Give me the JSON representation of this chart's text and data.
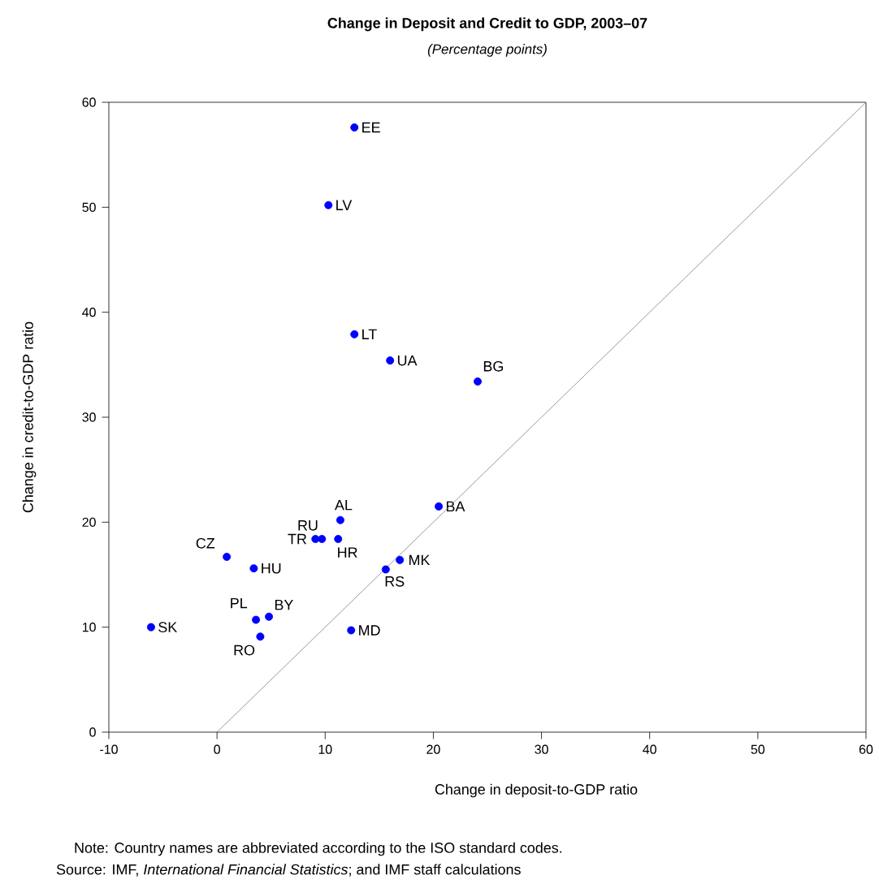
{
  "chart_data": {
    "type": "scatter",
    "title": "Change in Deposit and Credit to GDP, 2003–07",
    "subtitle": "(Percentage points)",
    "xlabel": "Change in deposit-to-GDP ratio",
    "ylabel": "Change in credit-to-GDP ratio",
    "xlim": [
      -10,
      60
    ],
    "ylim": [
      0,
      60
    ],
    "xticks": [
      -10,
      0,
      10,
      20,
      30,
      40,
      50,
      60
    ],
    "yticks": [
      0,
      10,
      20,
      30,
      40,
      50,
      60
    ],
    "grid": false,
    "legend": false,
    "marker": "circle",
    "series": [
      {
        "name": "EE",
        "color": "#0000ff",
        "x": [
          12.7
        ],
        "values": [
          57.6
        ]
      },
      {
        "name": "LV",
        "color": "#0000ff",
        "x": [
          10.3
        ],
        "values": [
          50.2
        ]
      },
      {
        "name": "LT",
        "color": "#0000ff",
        "x": [
          12.7
        ],
        "values": [
          37.9
        ]
      },
      {
        "name": "UA",
        "color": "#0000ff",
        "x": [
          16.0
        ],
        "values": [
          35.4
        ]
      },
      {
        "name": "BG",
        "color": "#0000ff",
        "x": [
          24.1
        ],
        "values": [
          33.4
        ]
      },
      {
        "name": "AL",
        "color": "#0000ff",
        "x": [
          11.4
        ],
        "values": [
          20.2
        ]
      },
      {
        "name": "HR",
        "color": "#0000ff",
        "x": [
          11.2
        ],
        "values": [
          18.4
        ]
      },
      {
        "name": "RU",
        "color": "#0000ff",
        "x": [
          9.7
        ],
        "values": [
          18.4
        ]
      },
      {
        "name": "TR",
        "color": "#0000ff",
        "x": [
          9.1
        ],
        "values": [
          18.4
        ]
      },
      {
        "name": "CZ",
        "color": "#0000ff",
        "x": [
          0.9
        ],
        "values": [
          16.7
        ]
      },
      {
        "name": "HU",
        "color": "#0000ff",
        "x": [
          3.4
        ],
        "values": [
          15.6
        ]
      },
      {
        "name": "BA",
        "color": "#0000ff",
        "x": [
          20.5
        ],
        "values": [
          21.5
        ]
      },
      {
        "name": "MK",
        "color": "#0000ff",
        "x": [
          16.9
        ],
        "values": [
          16.4
        ]
      },
      {
        "name": "RS",
        "color": "#0000ff",
        "x": [
          15.6
        ],
        "values": [
          15.5
        ]
      },
      {
        "name": "SK",
        "color": "#0000ff",
        "x": [
          -6.1
        ],
        "values": [
          10.0
        ]
      },
      {
        "name": "PL",
        "color": "#0000ff",
        "x": [
          3.6
        ],
        "values": [
          10.7
        ]
      },
      {
        "name": "BY",
        "color": "#0000ff",
        "x": [
          4.8
        ],
        "values": [
          11.0
        ]
      },
      {
        "name": "RO",
        "color": "#0000ff",
        "x": [
          4.0
        ],
        "values": [
          9.1
        ]
      },
      {
        "name": "MD",
        "color": "#0000ff",
        "x": [
          12.4
        ],
        "values": [
          9.7
        ]
      },
      {
        "type": "line",
        "color": "#808080",
        "marker": "none",
        "x": [
          0,
          60
        ],
        "values": [
          0,
          60
        ]
      }
    ],
    "annotations": [
      "Note: Country names are abbreviated according to the ISO standard codes.",
      "Source: IMF, *International Financial Statistics*; and IMF staff calculations"
    ]
  }
}
